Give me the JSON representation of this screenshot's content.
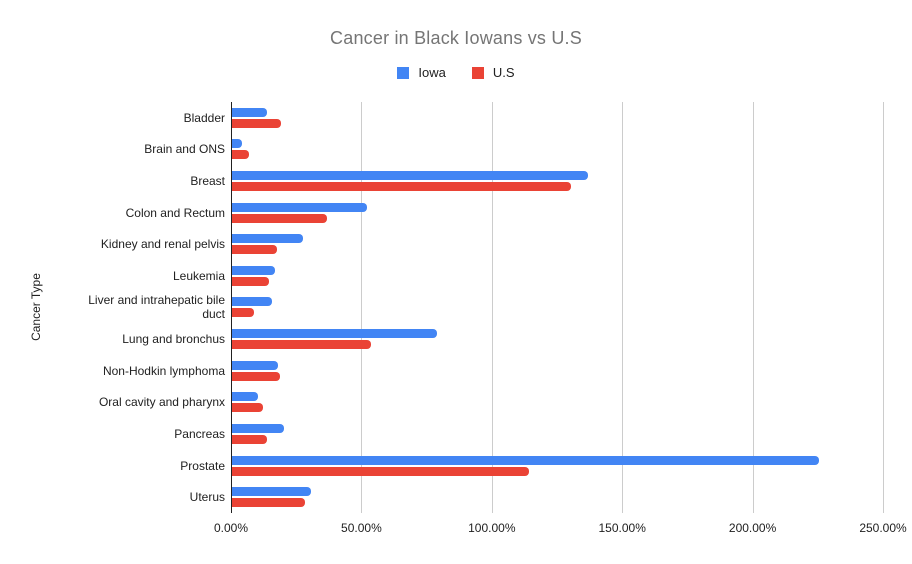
{
  "chart_data": {
    "type": "bar",
    "orientation": "horizontal",
    "title": "Cancer in Black Iowans vs U.S",
    "ylabel": "Cancer Type",
    "xlabel": "",
    "grid": true,
    "legend_position": "top",
    "categories": [
      "Bladder",
      "Brain and ONS",
      "Breast",
      "Colon and Rectum",
      "Kidney and renal pelvis",
      "Leukemia",
      "Liver and intrahepatic bile duct",
      "Lung and bronchus",
      "Non-Hodkin lymphoma",
      "Oral cavity and pharynx",
      "Pancreas",
      "Prostate",
      "Uterus"
    ],
    "series": [
      {
        "name": "Iowa",
        "color": "#4285F4",
        "values": [
          13.4,
          3.8,
          136.5,
          51.7,
          27.1,
          16.5,
          15.3,
          78.7,
          17.7,
          10.0,
          20.0,
          225.0,
          30.3
        ]
      },
      {
        "name": "U.S",
        "color": "#EA4335",
        "values": [
          18.8,
          6.5,
          129.8,
          36.3,
          17.3,
          14.2,
          8.4,
          53.2,
          18.4,
          11.9,
          13.4,
          113.7,
          28.0
        ]
      }
    ],
    "x_axis": {
      "min": 0,
      "max": 250,
      "tick_values": [
        0,
        50,
        100,
        150,
        200,
        250
      ],
      "tick_labels": [
        "0.00%",
        "50.00%",
        "100.00%",
        "150.00%",
        "200.00%",
        "250.00%"
      ]
    },
    "colors": {
      "title_text": "#757575",
      "axis_text": "#212121",
      "gridline": "#cccccc",
      "axis_line": "#212121",
      "background": "#ffffff"
    }
  }
}
